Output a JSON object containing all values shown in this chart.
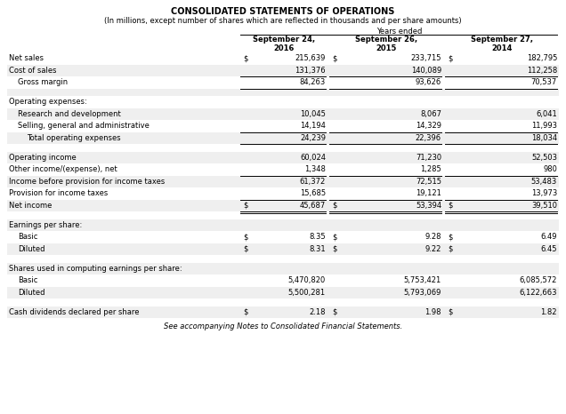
{
  "title": "CONSOLIDATED STATEMENTS OF OPERATIONS",
  "subtitle": "(In millions, except number of shares which are reflected in thousands and per share amounts)",
  "years_ended_label": "Years ended",
  "col_headers": [
    "September 24,\n2016",
    "September 26,\n2015",
    "September 27,\n2014"
  ],
  "footer": "See accompanying Notes to Consolidated Financial Statements.",
  "col_header_bold": true,
  "bg_light": "#efefef",
  "bg_white": "#ffffff",
  "line_color": "#000000",
  "text_color": "#000000",
  "rows": [
    {
      "label": "Net sales",
      "indent": 0,
      "values": [
        "215,639",
        "233,715",
        "182,795"
      ],
      "dollar_sign": true,
      "bg": "white",
      "border_top": false,
      "border_bottom": false,
      "double_bottom": false
    },
    {
      "label": "Cost of sales",
      "indent": 0,
      "values": [
        "131,376",
        "140,089",
        "112,258"
      ],
      "dollar_sign": false,
      "bg": "gray",
      "border_top": false,
      "border_bottom": false,
      "double_bottom": false
    },
    {
      "label": "Gross margin",
      "indent": 1,
      "values": [
        "84,263",
        "93,626",
        "70,537"
      ],
      "dollar_sign": false,
      "bg": "white",
      "border_top": true,
      "border_bottom": true,
      "double_bottom": false
    },
    {
      "label": "",
      "spacer": true,
      "bg": "gray"
    },
    {
      "label": "Operating expenses:",
      "indent": 0,
      "values": [
        "",
        "",
        ""
      ],
      "dollar_sign": false,
      "bg": "white",
      "border_top": false,
      "border_bottom": false,
      "double_bottom": false
    },
    {
      "label": "Research and development",
      "indent": 1,
      "values": [
        "10,045",
        "8,067",
        "6,041"
      ],
      "dollar_sign": false,
      "bg": "gray",
      "border_top": false,
      "border_bottom": false,
      "double_bottom": false
    },
    {
      "label": "Selling, general and administrative",
      "indent": 1,
      "values": [
        "14,194",
        "14,329",
        "11,993"
      ],
      "dollar_sign": false,
      "bg": "white",
      "border_top": false,
      "border_bottom": false,
      "double_bottom": false
    },
    {
      "label": "Total operating expenses",
      "indent": 2,
      "values": [
        "24,239",
        "22,396",
        "18,034"
      ],
      "dollar_sign": false,
      "bg": "gray",
      "border_top": true,
      "border_bottom": true,
      "double_bottom": false
    },
    {
      "label": "",
      "spacer": true,
      "bg": "white"
    },
    {
      "label": "Operating income",
      "indent": 0,
      "values": [
        "60,024",
        "71,230",
        "52,503"
      ],
      "dollar_sign": false,
      "bg": "gray",
      "border_top": false,
      "border_bottom": false,
      "double_bottom": false
    },
    {
      "label": "Other income/(expense), net",
      "indent": 0,
      "values": [
        "1,348",
        "1,285",
        "980"
      ],
      "dollar_sign": false,
      "bg": "white",
      "border_top": false,
      "border_bottom": false,
      "double_bottom": false
    },
    {
      "label": "Income before provision for income taxes",
      "indent": 0,
      "values": [
        "61,372",
        "72,515",
        "53,483"
      ],
      "dollar_sign": false,
      "bg": "gray",
      "border_top": true,
      "border_bottom": false,
      "double_bottom": false
    },
    {
      "label": "Provision for income taxes",
      "indent": 0,
      "values": [
        "15,685",
        "19,121",
        "13,973"
      ],
      "dollar_sign": false,
      "bg": "white",
      "border_top": false,
      "border_bottom": false,
      "double_bottom": false
    },
    {
      "label": "Net income",
      "indent": 0,
      "values": [
        "45,687",
        "53,394",
        "39,510"
      ],
      "dollar_sign": true,
      "bg": "gray",
      "border_top": true,
      "border_bottom": true,
      "double_bottom": true
    },
    {
      "label": "",
      "spacer": true,
      "bg": "white"
    },
    {
      "label": "Earnings per share:",
      "indent": 0,
      "values": [
        "",
        "",
        ""
      ],
      "dollar_sign": false,
      "bg": "gray",
      "border_top": false,
      "border_bottom": false,
      "double_bottom": false
    },
    {
      "label": "Basic",
      "indent": 1,
      "values": [
        "8.35",
        "9.28",
        "6.49"
      ],
      "dollar_sign": true,
      "bg": "white",
      "border_top": false,
      "border_bottom": false,
      "double_bottom": false
    },
    {
      "label": "Diluted",
      "indent": 1,
      "values": [
        "8.31",
        "9.22",
        "6.45"
      ],
      "dollar_sign": true,
      "bg": "gray",
      "border_top": false,
      "border_bottom": false,
      "double_bottom": false
    },
    {
      "label": "",
      "spacer": true,
      "bg": "white"
    },
    {
      "label": "Shares used in computing earnings per share:",
      "indent": 0,
      "values": [
        "",
        "",
        ""
      ],
      "dollar_sign": false,
      "bg": "gray",
      "border_top": false,
      "border_bottom": false,
      "double_bottom": false
    },
    {
      "label": "Basic",
      "indent": 1,
      "values": [
        "5,470,820",
        "5,753,421",
        "6,085,572"
      ],
      "dollar_sign": false,
      "bg": "white",
      "border_top": false,
      "border_bottom": false,
      "double_bottom": false
    },
    {
      "label": "Diluted",
      "indent": 1,
      "values": [
        "5,500,281",
        "5,793,069",
        "6,122,663"
      ],
      "dollar_sign": false,
      "bg": "gray",
      "border_top": false,
      "border_bottom": false,
      "double_bottom": false
    },
    {
      "label": "",
      "spacer": true,
      "bg": "white"
    },
    {
      "label": "Cash dividends declared per share",
      "indent": 0,
      "values": [
        "2.18",
        "1.98",
        "1.82"
      ],
      "dollar_sign": true,
      "bg": "gray",
      "border_top": false,
      "border_bottom": false,
      "double_bottom": false
    }
  ]
}
